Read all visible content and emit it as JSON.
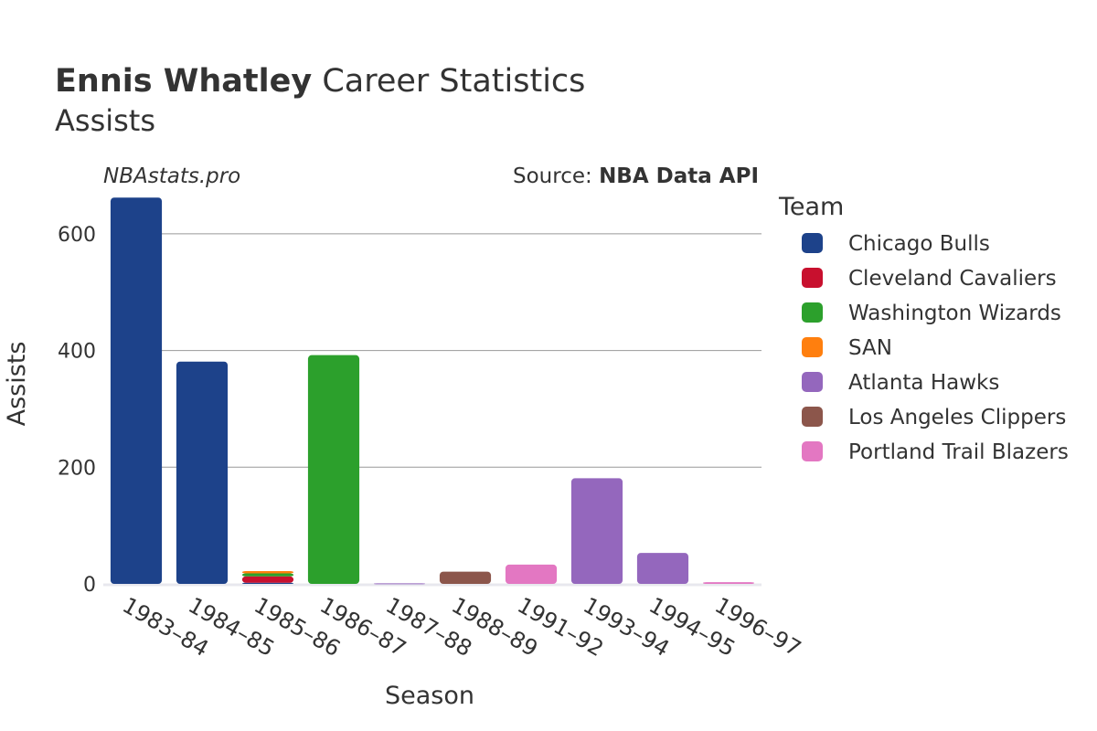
{
  "title": {
    "player": "Ennis Whatley",
    "rest": " Career Statistics",
    "subtitle": "Assists"
  },
  "watermark": "NBAstats.pro",
  "source": {
    "prefix": "Source: ",
    "name": "NBA Data API"
  },
  "legend": {
    "title": "Team",
    "placement": "right"
  },
  "colors": {
    "Chicago Bulls": "#1d428a",
    "Cleveland Cavaliers": "#c8102e",
    "Washington Wizards": "#2ca02c",
    "SAN": "#ff7f0e",
    "Atlanta Hawks": "#9467bd",
    "Los Angeles Clippers": "#8c564b",
    "Portland Trail Blazers": "#e377c2"
  },
  "chart_data": {
    "type": "bar",
    "stacked": true,
    "title": "Ennis Whatley Career Statistics",
    "subtitle": "Assists",
    "xlabel": "Season",
    "ylabel": "Assists",
    "ylim": [
      0,
      700
    ],
    "yticks": [
      0,
      200,
      400,
      600
    ],
    "grid": true,
    "categories": [
      "1983–84",
      "1984–85",
      "1985–86",
      "1986–87",
      "1987–88",
      "1988–89",
      "1991–92",
      "1993–94",
      "1994–95",
      "1996–97"
    ],
    "series": [
      {
        "name": "Chicago Bulls",
        "values": [
          662,
          381,
          2,
          0,
          0,
          0,
          0,
          0,
          0,
          0
        ]
      },
      {
        "name": "Cleveland Cavaliers",
        "values": [
          0,
          0,
          11,
          0,
          0,
          0,
          0,
          0,
          0,
          0
        ]
      },
      {
        "name": "Washington Wizards",
        "values": [
          0,
          0,
          5,
          392,
          0,
          0,
          0,
          0,
          0,
          0
        ]
      },
      {
        "name": "SAN",
        "values": [
          0,
          0,
          4,
          0,
          0,
          0,
          0,
          0,
          0,
          0
        ]
      },
      {
        "name": "Atlanta Hawks",
        "values": [
          0,
          0,
          0,
          0,
          1,
          0,
          0,
          181,
          53,
          0
        ]
      },
      {
        "name": "Los Angeles Clippers",
        "values": [
          0,
          0,
          0,
          0,
          0,
          21,
          0,
          0,
          0,
          0
        ]
      },
      {
        "name": "Portland Trail Blazers",
        "values": [
          0,
          0,
          0,
          0,
          0,
          0,
          33,
          0,
          0,
          3
        ]
      }
    ]
  }
}
